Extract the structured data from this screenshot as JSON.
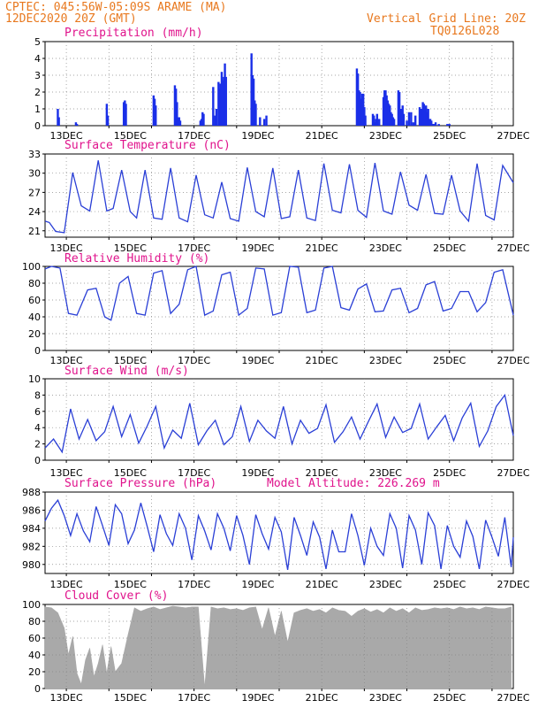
{
  "header": {
    "line1_left": "CPTEC:   045:56W-05:09S   ARAME (MA)",
    "line2_left": "12DEC2020 20Z (GMT)",
    "line1_right": "Vertical Grid Line: 20Z",
    "line2_right": "TQ0126L028"
  },
  "colors": {
    "header": "#e8781e",
    "title": "#e0138c",
    "line": "#2a3fd6",
    "bar": "#1a2fe8",
    "cloud": "#a9a9a9",
    "arrow": "#000000"
  },
  "x_tick_labels": [
    "13DEC",
    "15DEC",
    "17DEC",
    "19DEC",
    "21DEC",
    "23DEC",
    "25DEC",
    "27DEC"
  ],
  "chart_data": [
    {
      "type": "bar",
      "title": "Precipitation (mm/h)",
      "ylim": [
        0,
        5
      ],
      "yticks": [
        0,
        1,
        2,
        3,
        4,
        5
      ],
      "x": [
        0.6,
        0.65,
        1.45,
        1.5,
        2.9,
        2.95,
        3.7,
        3.75,
        3.8,
        5.1,
        5.15,
        5.2,
        6.1,
        6.15,
        6.2,
        6.25,
        6.3,
        6.35,
        7.3,
        7.35,
        7.4,
        7.45,
        7.9,
        8.0,
        8.05,
        8.15,
        8.2,
        8.25,
        8.3,
        8.35,
        8.4,
        8.45,
        8.5,
        9.7,
        9.75,
        9.8,
        9.85,
        9.9,
        10.1,
        10.3,
        10.4,
        14.65,
        14.7,
        14.75,
        14.8,
        14.85,
        14.9,
        14.95,
        15.0,
        15.05,
        15.4,
        15.45,
        15.5,
        15.55,
        15.6,
        15.7,
        15.9,
        15.95,
        16.0,
        16.05,
        16.1,
        16.15,
        16.2,
        16.25,
        16.3,
        16.35,
        16.4,
        16.6,
        16.65,
        16.7,
        16.75,
        16.8,
        16.85,
        17.0,
        17.1,
        17.2,
        17.3,
        17.4,
        17.6,
        17.65,
        17.7,
        17.75,
        17.8,
        17.85,
        17.9,
        17.95,
        18.0,
        18.05,
        18.1,
        18.15,
        18.2,
        18.25,
        18.3,
        18.35,
        18.5,
        18.9,
        19.0
      ],
      "values": [
        1.0,
        0.5,
        0.2,
        0.1,
        1.3,
        0.6,
        1.4,
        1.5,
        1.3,
        1.8,
        1.6,
        1.2,
        2.4,
        2.2,
        1.4,
        0.5,
        0.5,
        0.3,
        0.3,
        0.4,
        0.8,
        0.7,
        2.3,
        0.6,
        1.0,
        2.6,
        2.2,
        2.5,
        3.2,
        2.7,
        2.9,
        3.7,
        2.9,
        4.3,
        3.0,
        2.8,
        1.5,
        1.3,
        0.5,
        0.4,
        0.6,
        3.4,
        3.1,
        2.1,
        2.0,
        1.6,
        1.9,
        1.9,
        1.1,
        0.6,
        0.7,
        0.6,
        0.2,
        0.4,
        0.7,
        0.4,
        1.7,
        2.1,
        2.1,
        1.8,
        1.5,
        1.3,
        1.2,
        0.8,
        0.7,
        0.5,
        0.4,
        2.1,
        2.0,
        1.0,
        1.0,
        1.2,
        0.7,
        0.3,
        0.8,
        0.8,
        0.2,
        0.6,
        1.1,
        1.0,
        1.0,
        1.4,
        1.3,
        1.1,
        1.2,
        0.8,
        1.0,
        0.4,
        0.4,
        0.3,
        0.1,
        0.1,
        0.1,
        0.2,
        0.1,
        0.1,
        0.1
      ]
    },
    {
      "type": "line",
      "title": "Surface Temperature (nC)",
      "ylim": [
        20,
        33
      ],
      "yticks": [
        21,
        24,
        27,
        30,
        33
      ],
      "x": [
        0.0,
        0.2,
        0.5,
        0.9,
        1.3,
        1.7,
        2.1,
        2.5,
        2.9,
        3.2,
        3.6,
        4.0,
        4.3,
        4.7,
        5.1,
        5.5,
        5.9,
        6.3,
        6.7,
        7.1,
        7.5,
        7.9,
        8.3,
        8.7,
        9.1,
        9.5,
        9.9,
        10.3,
        10.7,
        11.1,
        11.5,
        11.9,
        12.3,
        12.7,
        13.1,
        13.5,
        13.9,
        14.3,
        14.7,
        15.1,
        15.5,
        15.9,
        16.3,
        16.7,
        17.1,
        17.5,
        17.9,
        18.3,
        18.7,
        19.1,
        19.5,
        19.9,
        20.3,
        20.7,
        21.1,
        21.5,
        22.0
      ],
      "values": [
        22.5,
        22.3,
        20.9,
        20.7,
        30.1,
        24.9,
        24.1,
        32.0,
        24.1,
        24.5,
        30.5,
        24.0,
        23.0,
        30.5,
        23.0,
        22.8,
        30.8,
        23.0,
        22.4,
        29.7,
        23.5,
        23.0,
        28.6,
        22.9,
        22.5,
        30.9,
        24.0,
        23.2,
        30.8,
        22.9,
        23.2,
        30.5,
        23.0,
        22.6,
        31.5,
        24.2,
        23.8,
        31.4,
        24.2,
        23.1,
        31.6,
        24.1,
        23.6,
        30.2,
        25.0,
        24.2,
        29.8,
        23.7,
        23.6,
        29.7,
        24.1,
        22.5,
        31.5,
        23.4,
        22.7,
        31.2,
        28.5
      ]
    },
    {
      "type": "line",
      "title": "Relative Humidity (%)",
      "ylim": [
        0,
        100
      ],
      "yticks": [
        0,
        20,
        40,
        60,
        80,
        100
      ],
      "x": [
        0.0,
        0.3,
        0.7,
        1.1,
        1.5,
        2.0,
        2.4,
        2.8,
        3.1,
        3.5,
        3.9,
        4.3,
        4.7,
        5.1,
        5.5,
        5.9,
        6.3,
        6.7,
        7.1,
        7.5,
        7.9,
        8.3,
        8.7,
        9.1,
        9.5,
        9.9,
        10.3,
        10.7,
        11.1,
        11.5,
        11.9,
        12.3,
        12.7,
        13.1,
        13.5,
        13.9,
        14.3,
        14.7,
        15.1,
        15.5,
        15.9,
        16.3,
        16.7,
        17.1,
        17.5,
        17.9,
        18.3,
        18.7,
        19.1,
        19.5,
        19.9,
        20.3,
        20.7,
        21.1,
        21.5,
        22.0
      ],
      "values": [
        97,
        100,
        98,
        44,
        42,
        72,
        74,
        40,
        36,
        80,
        88,
        44,
        42,
        92,
        95,
        44,
        55,
        96,
        100,
        42,
        47,
        90,
        93,
        42,
        50,
        98,
        97,
        42,
        45,
        100,
        99,
        45,
        48,
        98,
        100,
        51,
        48,
        73,
        79,
        46,
        47,
        72,
        74,
        45,
        50,
        78,
        82,
        47,
        50,
        70,
        70,
        46,
        57,
        93,
        96,
        42
      ],
      "note": ""
    },
    {
      "type": "line",
      "title": "Surface Wind (m/s)",
      "ylim": [
        0,
        10
      ],
      "yticks": [
        0,
        2,
        4,
        6,
        8,
        10
      ],
      "x": [
        0.0,
        0.4,
        0.8,
        1.2,
        1.6,
        2.0,
        2.4,
        2.8,
        3.2,
        3.6,
        4.0,
        4.4,
        4.8,
        5.2,
        5.6,
        6.0,
        6.4,
        6.8,
        7.2,
        7.6,
        8.0,
        8.4,
        8.8,
        9.2,
        9.6,
        10.0,
        10.4,
        10.8,
        11.2,
        11.6,
        12.0,
        12.4,
        12.8,
        13.2,
        13.6,
        14.0,
        14.4,
        14.8,
        15.2,
        15.6,
        16.0,
        16.4,
        16.8,
        17.2,
        17.6,
        18.0,
        18.4,
        18.8,
        19.2,
        19.6,
        20.0,
        20.4,
        20.8,
        21.2,
        21.6,
        22.0
      ],
      "values": [
        1.5,
        2.6,
        1.0,
        6.3,
        2.6,
        5.0,
        2.4,
        3.5,
        6.6,
        2.9,
        5.6,
        2.1,
        4.2,
        6.6,
        1.5,
        3.7,
        2.7,
        7.0,
        1.9,
        3.6,
        4.9,
        1.9,
        2.9,
        6.6,
        2.3,
        4.9,
        3.6,
        2.7,
        6.6,
        2.0,
        4.9,
        3.3,
        3.9,
        6.8,
        2.2,
        3.5,
        5.3,
        2.6,
        4.8,
        6.9,
        2.8,
        5.3,
        3.4,
        3.9,
        6.9,
        2.6,
        4.1,
        5.5,
        2.4,
        5.2,
        7.0,
        1.7,
        3.6,
        6.6,
        8.0,
        3.0
      ]
    },
    {
      "type": "line",
      "title": "Surface Pressure (hPa)",
      "subtitle": "Model Altitude: 226.269  m",
      "ylim": [
        979,
        988
      ],
      "yticks": [
        980,
        982,
        984,
        986,
        988
      ],
      "x": [
        0.0,
        0.3,
        0.6,
        0.9,
        1.2,
        1.5,
        1.8,
        2.1,
        2.4,
        2.7,
        3.0,
        3.3,
        3.6,
        3.9,
        4.2,
        4.5,
        4.8,
        5.1,
        5.4,
        5.7,
        6.0,
        6.3,
        6.6,
        6.9,
        7.2,
        7.5,
        7.8,
        8.1,
        8.4,
        8.7,
        9.0,
        9.3,
        9.6,
        9.9,
        10.2,
        10.5,
        10.8,
        11.1,
        11.4,
        11.7,
        12.0,
        12.3,
        12.6,
        12.9,
        13.2,
        13.5,
        13.8,
        14.1,
        14.4,
        14.7,
        15.0,
        15.3,
        15.6,
        15.9,
        16.2,
        16.5,
        16.8,
        17.1,
        17.4,
        17.7,
        18.0,
        18.3,
        18.6,
        18.9,
        19.2,
        19.5,
        19.8,
        20.1,
        20.4,
        20.7,
        21.0,
        21.3,
        21.6,
        21.9,
        22.0
      ],
      "values": [
        984.8,
        986.2,
        987.1,
        985.4,
        983.2,
        985.6,
        983.7,
        982.5,
        986.4,
        984.3,
        982.1,
        986.6,
        985.6,
        982.3,
        983.8,
        986.8,
        984.2,
        981.4,
        985.5,
        983.4,
        982.1,
        985.6,
        984.0,
        980.5,
        985.4,
        983.7,
        981.6,
        985.6,
        984.0,
        981.5,
        985.4,
        983.2,
        980.0,
        985.5,
        983.4,
        981.7,
        985.2,
        983.6,
        979.4,
        985.2,
        983.2,
        981.0,
        984.7,
        983.0,
        979.5,
        983.8,
        981.4,
        981.4,
        985.6,
        983.2,
        979.9,
        984.0,
        982.0,
        981.0,
        985.6,
        984.0,
        979.6,
        985.4,
        983.8,
        980.0,
        985.7,
        984.3,
        979.5,
        984.3,
        982.0,
        980.8,
        984.8,
        983.1,
        979.5,
        984.9,
        983.0,
        980.9,
        985.2,
        979.7,
        983.0
      ]
    },
    {
      "type": "area",
      "title": "Cloud Cover (%)",
      "ylim": [
        0,
        100
      ],
      "yticks": [
        0,
        20,
        40,
        60,
        80,
        100
      ],
      "x": [
        0.0,
        0.3,
        0.6,
        0.9,
        1.1,
        1.3,
        1.5,
        1.7,
        1.9,
        2.1,
        2.3,
        2.5,
        2.7,
        2.9,
        3.1,
        3.3,
        3.6,
        3.9,
        4.2,
        4.5,
        4.8,
        5.1,
        5.4,
        5.7,
        6.0,
        6.3,
        6.6,
        6.9,
        7.2,
        7.5,
        7.8,
        8.1,
        8.4,
        8.7,
        9.0,
        9.3,
        9.6,
        9.9,
        10.2,
        10.5,
        10.8,
        11.1,
        11.4,
        11.7,
        12.0,
        12.3,
        12.6,
        12.9,
        13.2,
        13.5,
        13.8,
        14.1,
        14.4,
        14.7,
        15.0,
        15.3,
        15.6,
        15.9,
        16.2,
        16.5,
        16.8,
        17.1,
        17.4,
        17.7,
        18.0,
        18.3,
        18.6,
        18.9,
        19.2,
        19.5,
        19.8,
        20.1,
        20.4,
        20.7,
        21.0,
        21.3,
        21.6,
        21.9
      ],
      "values": [
        97,
        96,
        90,
        72,
        40,
        62,
        18,
        5,
        34,
        48,
        14,
        30,
        52,
        18,
        50,
        20,
        30,
        64,
        96,
        92,
        95,
        97,
        94,
        96,
        98,
        97,
        96,
        97,
        97,
        1,
        97,
        95,
        96,
        94,
        95,
        93,
        96,
        97,
        70,
        96,
        62,
        92,
        55,
        90,
        93,
        95,
        92,
        94,
        90,
        96,
        93,
        92,
        86,
        92,
        95,
        91,
        94,
        90,
        96,
        92,
        95,
        90,
        96,
        93,
        94,
        96,
        95,
        96,
        94,
        97,
        95,
        96,
        94,
        97,
        96,
        95,
        95,
        97
      ]
    }
  ]
}
